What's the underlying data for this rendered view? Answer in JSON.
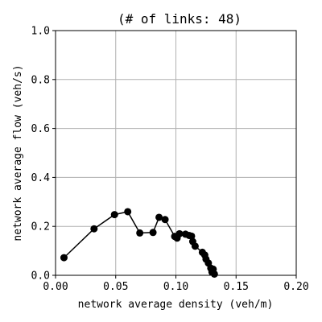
{
  "chart_data": {
    "type": "line",
    "title": "(# of links: 48)",
    "xlabel": "network average density (veh/m)",
    "ylabel": "network average flow (veh/s)",
    "xlim": [
      0.0,
      0.2
    ],
    "ylim": [
      0.0,
      1.0
    ],
    "x_ticks": [
      "0.00",
      "0.05",
      "0.10",
      "0.15",
      "0.20"
    ],
    "y_ticks": [
      "0.0",
      "0.2",
      "0.4",
      "0.6",
      "0.8",
      "1.0"
    ],
    "grid": true,
    "series_color": "#000000",
    "series": [
      {
        "marker": "circle",
        "x": [
          0.007,
          0.032,
          0.049,
          0.06,
          0.07,
          0.081,
          0.086,
          0.091,
          0.099,
          0.101,
          0.103,
          0.108,
          0.111,
          0.113,
          0.114,
          0.116,
          0.122,
          0.124,
          0.125,
          0.127,
          0.129,
          0.13,
          0.131,
          0.132
        ],
        "y": [
          0.072,
          0.19,
          0.248,
          0.26,
          0.173,
          0.175,
          0.237,
          0.228,
          0.159,
          0.152,
          0.17,
          0.168,
          0.163,
          0.16,
          0.138,
          0.119,
          0.094,
          0.083,
          0.066,
          0.05,
          0.029,
          0.013,
          0.025,
          0.005
        ]
      }
    ]
  }
}
